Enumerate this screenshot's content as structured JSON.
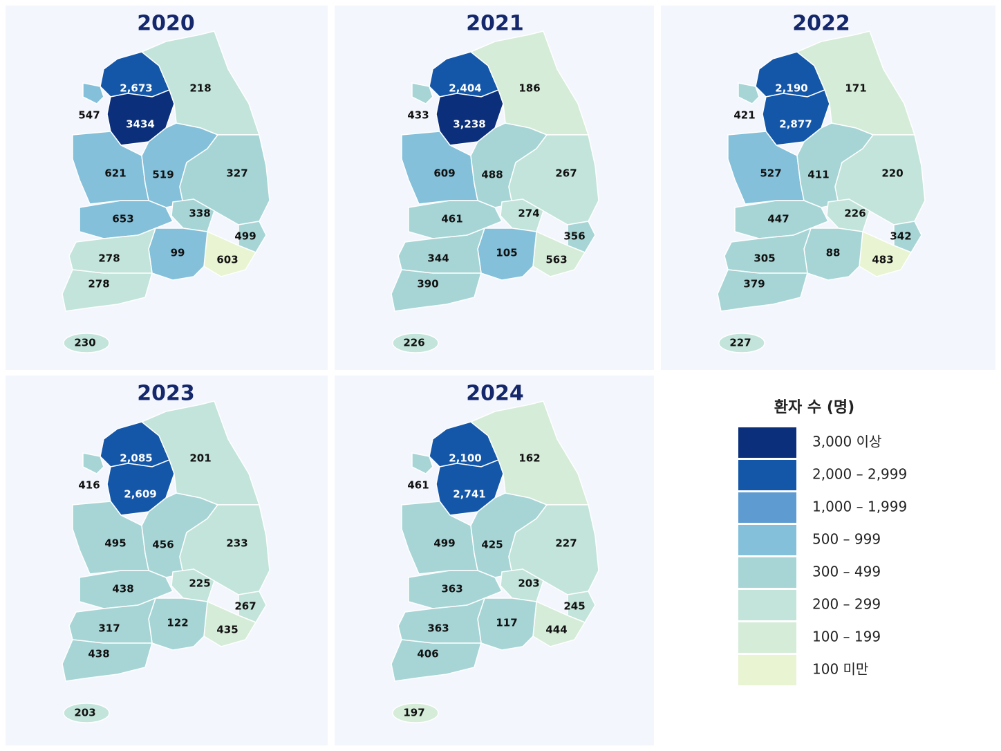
{
  "maps": [
    {
      "title": "2020",
      "values": [
        2673,
        3434,
        547,
        218,
        621,
        519,
        327,
        653,
        338,
        499,
        99,
        603,
        278,
        278,
        230
      ],
      "value_labels": [
        "2,673",
        "3434",
        "547",
        "218",
        "621",
        "519",
        "327",
        "653",
        "338",
        "499",
        "99",
        "603",
        "278",
        "278",
        "230"
      ]
    },
    {
      "title": "2021",
      "values": [
        2404,
        3238,
        433,
        186,
        609,
        488,
        267,
        461,
        274,
        356,
        105,
        563,
        344,
        390,
        226
      ],
      "value_labels": [
        "2,404",
        "3,238",
        "433",
        "186",
        "609",
        "488",
        "267",
        "461",
        "274",
        "356",
        "105",
        "563",
        "344",
        "390",
        "226"
      ]
    },
    {
      "title": "2022",
      "values": [
        2190,
        2877,
        421,
        171,
        527,
        411,
        220,
        447,
        226,
        342,
        88,
        483,
        305,
        379,
        227
      ],
      "value_labels": [
        "2,190",
        "2,877",
        "421",
        "171",
        "527",
        "411",
        "220",
        "447",
        "226",
        "342",
        "88",
        "483",
        "305",
        "379",
        "227"
      ]
    },
    {
      "title": "2023",
      "values": [
        2085,
        2609,
        416,
        201,
        495,
        456,
        233,
        438,
        225,
        267,
        122,
        435,
        317,
        438,
        203
      ],
      "value_labels": [
        "2,085",
        "2,609",
        "416",
        "201",
        "495",
        "456",
        "233",
        "438",
        "225",
        "267",
        "122",
        "435",
        "317",
        "438",
        "203"
      ]
    },
    {
      "title": "2024",
      "values": [
        2100,
        2741,
        461,
        162,
        499,
        425,
        227,
        363,
        203,
        245,
        117,
        444,
        363,
        406,
        197
      ],
      "value_labels": [
        "2,100",
        "2,741",
        "461",
        "162",
        "499",
        "425",
        "227",
        "363",
        "203",
        "245",
        "117",
        "444",
        "363",
        "406",
        "197"
      ]
    }
  ],
  "legend": {
    "title": "환자 수 (명)",
    "items": [
      {
        "label": "3,000 이상",
        "color": "#0b2f7a",
        "min": 3000
      },
      {
        "label": "2,000 – 2,999",
        "color": "#1457a8",
        "min": 2000
      },
      {
        "label": "1,000 – 1,999",
        "color": "#5e9bd0",
        "min": 1000
      },
      {
        "label": "500 – 999",
        "color": "#84c0da",
        "min": 500
      },
      {
        "label": "300 – 499",
        "color": "#a7d5d6",
        "min": 300
      },
      {
        "label": "200 – 299",
        "color": "#c3e4da",
        "min": 200
      },
      {
        "label": "100 – 199",
        "color": "#d5ecd8",
        "min": 100
      },
      {
        "label": "100 미만",
        "color": "#e8f4d2",
        "max": 100
      }
    ]
  }
}
